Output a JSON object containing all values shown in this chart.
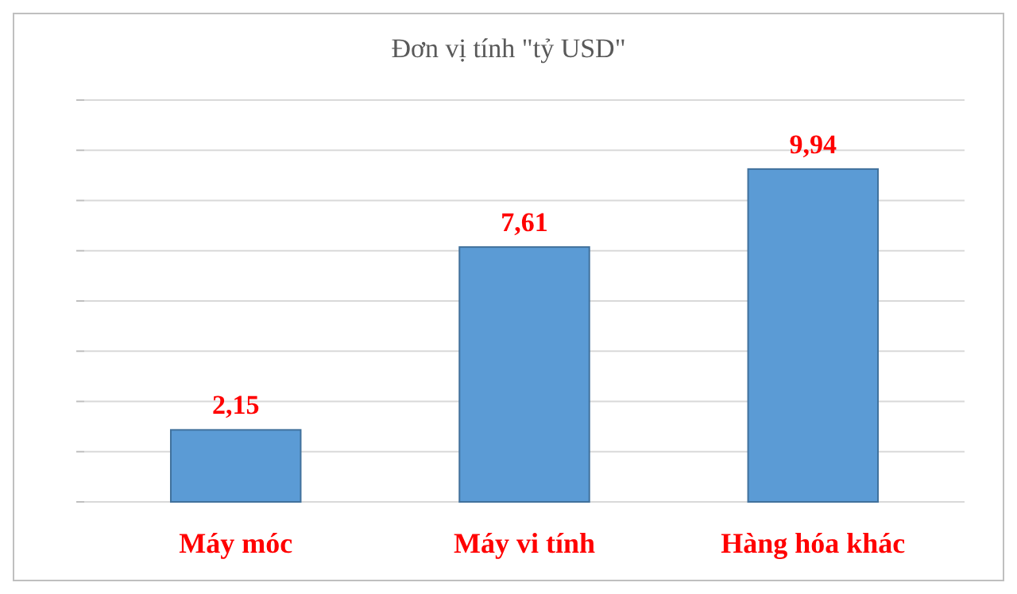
{
  "chart_data": {
    "type": "bar",
    "title": "Đơn vị tính \"tỷ USD\"",
    "categories": [
      "Máy móc",
      "Máy vi tính",
      "Hàng hóa khác"
    ],
    "values": [
      2.15,
      7.61,
      9.94
    ],
    "color": "#5b9bd5",
    "value_labels": [
      "2,15",
      "7,61",
      "9,94"
    ],
    "ylim": [
      0,
      12
    ],
    "yticks": [
      {
        "value": 0,
        "label": null
      },
      {
        "value": 1.5,
        "label": null
      },
      {
        "value": 3,
        "label": null
      },
      {
        "value": 4.5,
        "label": null
      },
      {
        "value": 6,
        "label": null
      },
      {
        "value": 7.5,
        "label": null
      },
      {
        "value": 9,
        "label": null
      },
      {
        "value": 10.5,
        "label": null
      },
      {
        "value": 12,
        "label": null
      }
    ],
    "grid": "y",
    "tick_labels": "x"
  }
}
